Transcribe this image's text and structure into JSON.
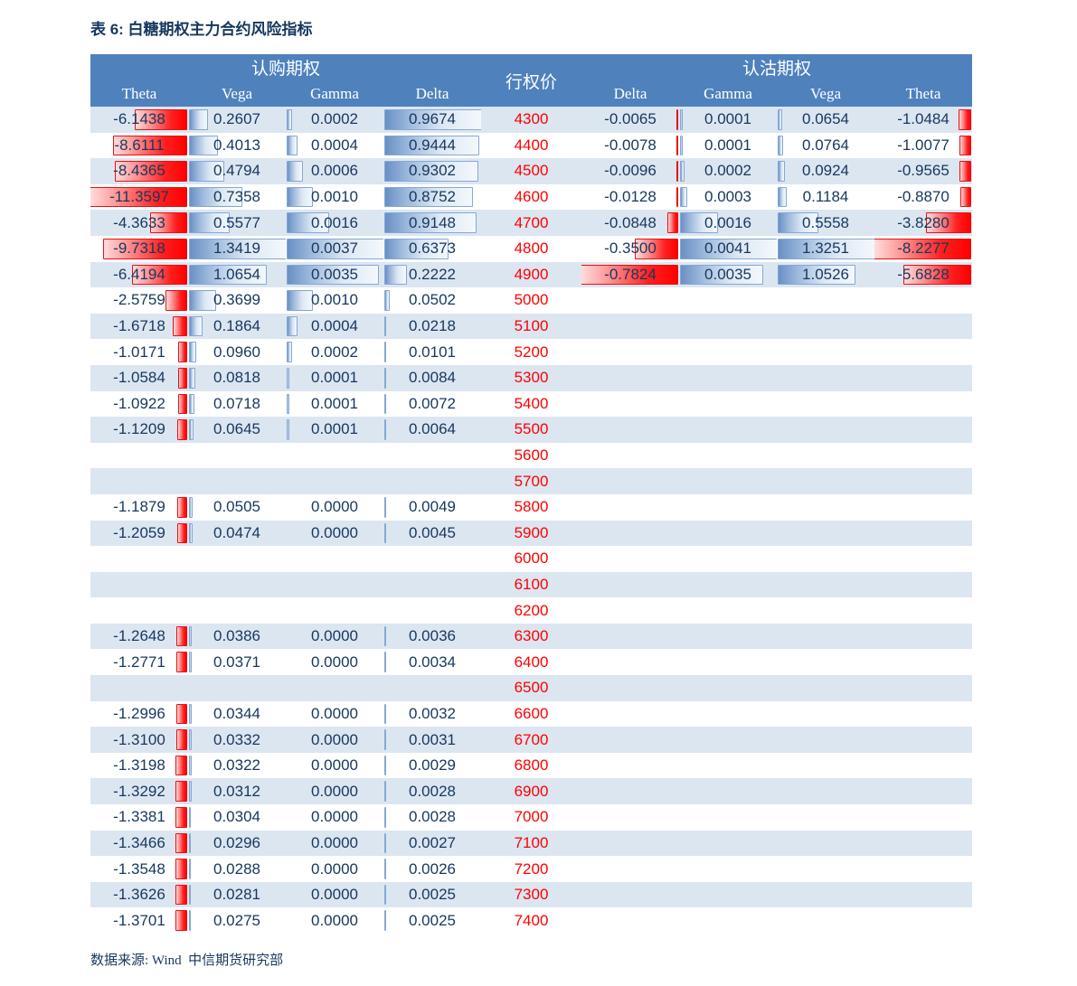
{
  "title": "表 6: 白糖期权主力合约风险指标",
  "footer": "数据来源: Wind  中信期货研究部",
  "colors": {
    "header_bg": "#4f81bd",
    "band_row_bg": "#dce6f1",
    "text_navy": "#17375e",
    "strike_red": "#ff0000",
    "bar_blue_border": "#85a8d4",
    "bar_red_border": "#e81010"
  },
  "table": {
    "call_group_label": "认购期权",
    "strike_label": "行权价",
    "put_group_label": "认沽期权",
    "columns": [
      "Theta",
      "Vega",
      "Gamma",
      "Delta",
      "Delta",
      "Gamma",
      "Vega",
      "Theta"
    ],
    "rows": [
      {
        "strike": "4300",
        "call": {
          "theta": "-6.1438",
          "vega": "0.2607",
          "gamma": "0.0002",
          "delta": "0.9674"
        },
        "put": {
          "delta": "-0.0065",
          "gamma": "0.0001",
          "vega": "0.0654",
          "theta": "-1.0484"
        }
      },
      {
        "strike": "4400",
        "call": {
          "theta": "-8.6111",
          "vega": "0.4013",
          "gamma": "0.0004",
          "delta": "0.9444"
        },
        "put": {
          "delta": "-0.0078",
          "gamma": "0.0001",
          "vega": "0.0764",
          "theta": "-1.0077"
        }
      },
      {
        "strike": "4500",
        "call": {
          "theta": "-8.4365",
          "vega": "0.4794",
          "gamma": "0.0006",
          "delta": "0.9302"
        },
        "put": {
          "delta": "-0.0096",
          "gamma": "0.0002",
          "vega": "0.0924",
          "theta": "-0.9565"
        }
      },
      {
        "strike": "4600",
        "call": {
          "theta": "-11.3597",
          "vega": "0.7358",
          "gamma": "0.0010",
          "delta": "0.8752"
        },
        "put": {
          "delta": "-0.0128",
          "gamma": "0.0003",
          "vega": "0.1184",
          "theta": "-0.8870"
        }
      },
      {
        "strike": "4700",
        "call": {
          "theta": "-4.3633",
          "vega": "0.5577",
          "gamma": "0.0016",
          "delta": "0.9148"
        },
        "put": {
          "delta": "-0.0848",
          "gamma": "0.0016",
          "vega": "0.5558",
          "theta": "-3.8280"
        }
      },
      {
        "strike": "4800",
        "call": {
          "theta": "-9.7318",
          "vega": "1.3419",
          "gamma": "0.0037",
          "delta": "0.6373"
        },
        "put": {
          "delta": "-0.3500",
          "gamma": "0.0041",
          "vega": "1.3251",
          "theta": "-8.2277"
        }
      },
      {
        "strike": "4900",
        "call": {
          "theta": "-6.4194",
          "vega": "1.0654",
          "gamma": "0.0035",
          "delta": "0.2222"
        },
        "put": {
          "delta": "-0.7824",
          "gamma": "0.0035",
          "vega": "1.0526",
          "theta": "-5.6828"
        }
      },
      {
        "strike": "5000",
        "call": {
          "theta": "-2.5759",
          "vega": "0.3699",
          "gamma": "0.0010",
          "delta": "0.0502"
        },
        "put": null
      },
      {
        "strike": "5100",
        "call": {
          "theta": "-1.6718",
          "vega": "0.1864",
          "gamma": "0.0004",
          "delta": "0.0218"
        },
        "put": null
      },
      {
        "strike": "5200",
        "call": {
          "theta": "-1.0171",
          "vega": "0.0960",
          "gamma": "0.0002",
          "delta": "0.0101"
        },
        "put": null
      },
      {
        "strike": "5300",
        "call": {
          "theta": "-1.0584",
          "vega": "0.0818",
          "gamma": "0.0001",
          "delta": "0.0084"
        },
        "put": null
      },
      {
        "strike": "5400",
        "call": {
          "theta": "-1.0922",
          "vega": "0.0718",
          "gamma": "0.0001",
          "delta": "0.0072"
        },
        "put": null
      },
      {
        "strike": "5500",
        "call": {
          "theta": "-1.1209",
          "vega": "0.0645",
          "gamma": "0.0001",
          "delta": "0.0064"
        },
        "put": null
      },
      {
        "strike": "5600",
        "call": null,
        "put": null
      },
      {
        "strike": "5700",
        "call": null,
        "put": null
      },
      {
        "strike": "5800",
        "call": {
          "theta": "-1.1879",
          "vega": "0.0505",
          "gamma": "0.0000",
          "delta": "0.0049"
        },
        "put": null
      },
      {
        "strike": "5900",
        "call": {
          "theta": "-1.2059",
          "vega": "0.0474",
          "gamma": "0.0000",
          "delta": "0.0045"
        },
        "put": null
      },
      {
        "strike": "6000",
        "call": null,
        "put": null
      },
      {
        "strike": "6100",
        "call": null,
        "put": null
      },
      {
        "strike": "6200",
        "call": null,
        "put": null
      },
      {
        "strike": "6300",
        "call": {
          "theta": "-1.2648",
          "vega": "0.0386",
          "gamma": "0.0000",
          "delta": "0.0036"
        },
        "put": null
      },
      {
        "strike": "6400",
        "call": {
          "theta": "-1.2771",
          "vega": "0.0371",
          "gamma": "0.0000",
          "delta": "0.0034"
        },
        "put": null
      },
      {
        "strike": "6500",
        "call": null,
        "put": null
      },
      {
        "strike": "6600",
        "call": {
          "theta": "-1.2996",
          "vega": "0.0344",
          "gamma": "0.0000",
          "delta": "0.0032"
        },
        "put": null
      },
      {
        "strike": "6700",
        "call": {
          "theta": "-1.3100",
          "vega": "0.0332",
          "gamma": "0.0000",
          "delta": "0.0031"
        },
        "put": null
      },
      {
        "strike": "6800",
        "call": {
          "theta": "-1.3198",
          "vega": "0.0322",
          "gamma": "0.0000",
          "delta": "0.0029"
        },
        "put": null
      },
      {
        "strike": "6900",
        "call": {
          "theta": "-1.3292",
          "vega": "0.0312",
          "gamma": "0.0000",
          "delta": "0.0028"
        },
        "put": null
      },
      {
        "strike": "7000",
        "call": {
          "theta": "-1.3381",
          "vega": "0.0304",
          "gamma": "0.0000",
          "delta": "0.0028"
        },
        "put": null
      },
      {
        "strike": "7100",
        "call": {
          "theta": "-1.3466",
          "vega": "0.0296",
          "gamma": "0.0000",
          "delta": "0.0027"
        },
        "put": null
      },
      {
        "strike": "7200",
        "call": {
          "theta": "-1.3548",
          "vega": "0.0288",
          "gamma": "0.0000",
          "delta": "0.0026"
        },
        "put": null
      },
      {
        "strike": "7300",
        "call": {
          "theta": "-1.3626",
          "vega": "0.0281",
          "gamma": "0.0000",
          "delta": "0.0025"
        },
        "put": null
      },
      {
        "strike": "7400",
        "call": {
          "theta": "-1.3701",
          "vega": "0.0275",
          "gamma": "0.0000",
          "delta": "0.0025"
        },
        "put": null
      }
    ]
  }
}
